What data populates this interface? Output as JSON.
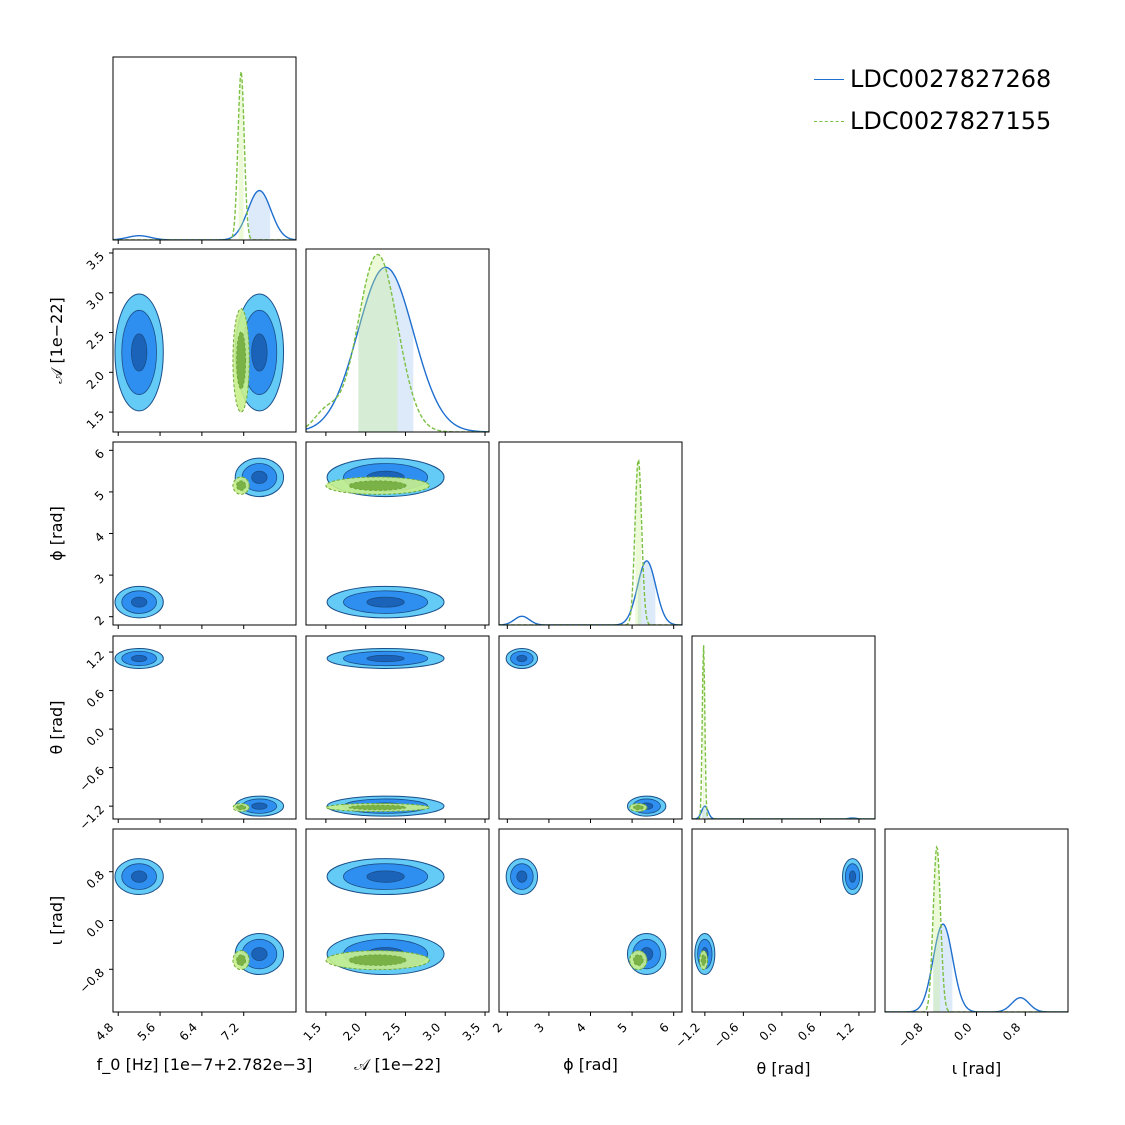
{
  "legend": [
    {
      "label": "LDC0027827268",
      "color": "#1f6fcf",
      "dash": "solid"
    },
    {
      "label": "LDC0027827155",
      "color": "#7cc043",
      "dash": "dashed"
    }
  ],
  "colors": {
    "fill_light": "#5bc8f5",
    "fill_mid": "#2f8ff0",
    "fill_dark": "#1a63b8",
    "edge": "#1a4f8a",
    "green_fill": "#c9f08c",
    "green_dark": "#6fa83a"
  },
  "chart_data": {
    "type": "corner",
    "parameters": [
      {
        "name": "f0",
        "label": "f_0 [Hz] [1e−7+2.782e−3]",
        "range": [
          4.7,
          8.2
        ],
        "ticks": [
          4.8,
          5.6,
          6.4,
          7.2
        ],
        "tick_labels": [
          "4.8",
          "5.6",
          "6.4",
          "7.2"
        ]
      },
      {
        "name": "A",
        "label": "𝒜 [1e−22]",
        "range": [
          1.25,
          3.55
        ],
        "ticks": [
          1.5,
          2.0,
          2.5,
          3.0,
          3.5
        ],
        "tick_labels": [
          "1.5",
          "2.0",
          "2.5",
          "3.0",
          "3.5"
        ]
      },
      {
        "name": "phi",
        "label": "ϕ [rad]",
        "range": [
          1.8,
          6.2
        ],
        "ticks": [
          2,
          3,
          4,
          5,
          6
        ],
        "tick_labels": [
          "2",
          "3",
          "4",
          "5",
          "6"
        ]
      },
      {
        "name": "theta",
        "label": "θ [rad]",
        "range": [
          -1.4,
          1.45
        ],
        "ticks": [
          -1.2,
          -0.6,
          0.0,
          0.6,
          1.2
        ],
        "tick_labels": [
          "−1.2",
          "−0.6",
          "0.0",
          "0.6",
          "1.2"
        ]
      },
      {
        "name": "iota",
        "label": "ι [rad]",
        "range": [
          -1.5,
          1.5
        ],
        "ticks": [
          -0.8,
          0.0,
          0.8
        ],
        "tick_labels": [
          "−0.8",
          "0.0",
          "0.8"
        ]
      }
    ],
    "series": [
      {
        "name": "LDC0027827268",
        "marginals": [
          [
            {
              "mu": 5.2,
              "sigma": 0.22,
              "w": 0.08
            },
            {
              "mu": 7.5,
              "sigma": 0.22,
              "w": 0.92
            }
          ],
          [
            {
              "mu": 2.25,
              "sigma": 0.35,
              "w": 1.0
            }
          ],
          [
            {
              "mu": 2.35,
              "sigma": 0.18,
              "w": 0.12
            },
            {
              "mu": 5.35,
              "sigma": 0.22,
              "w": 0.88
            }
          ],
          [
            {
              "mu": -1.2,
              "sigma": 0.05,
              "w": 0.93
            },
            {
              "mu": 1.1,
              "sigma": 0.06,
              "w": 0.07
            }
          ],
          [
            {
              "mu": -0.55,
              "sigma": 0.16,
              "w": 0.86
            },
            {
              "mu": 0.72,
              "sigma": 0.14,
              "w": 0.14
            }
          ]
        ],
        "peak_scale": [
          0.27,
          0.9,
          0.35,
          0.07,
          0.48
        ]
      },
      {
        "name": "LDC0027827155",
        "marginals": [
          [
            {
              "mu": 7.15,
              "sigma": 0.06,
              "w": 1.0
            }
          ],
          [
            {
              "mu": 2.15,
              "sigma": 0.25,
              "w": 0.9
            },
            {
              "mu": 1.5,
              "sigma": 0.15,
              "w": 0.1
            }
          ],
          [
            {
              "mu": 5.15,
              "sigma": 0.08,
              "w": 1.0
            }
          ],
          [
            {
              "mu": -1.22,
              "sigma": 0.02,
              "w": 1.0
            }
          ],
          [
            {
              "mu": -0.65,
              "sigma": 0.06,
              "w": 1.0
            }
          ]
        ],
        "peak_scale": [
          0.92,
          0.97,
          0.9,
          0.95,
          0.9
        ]
      }
    ]
  }
}
